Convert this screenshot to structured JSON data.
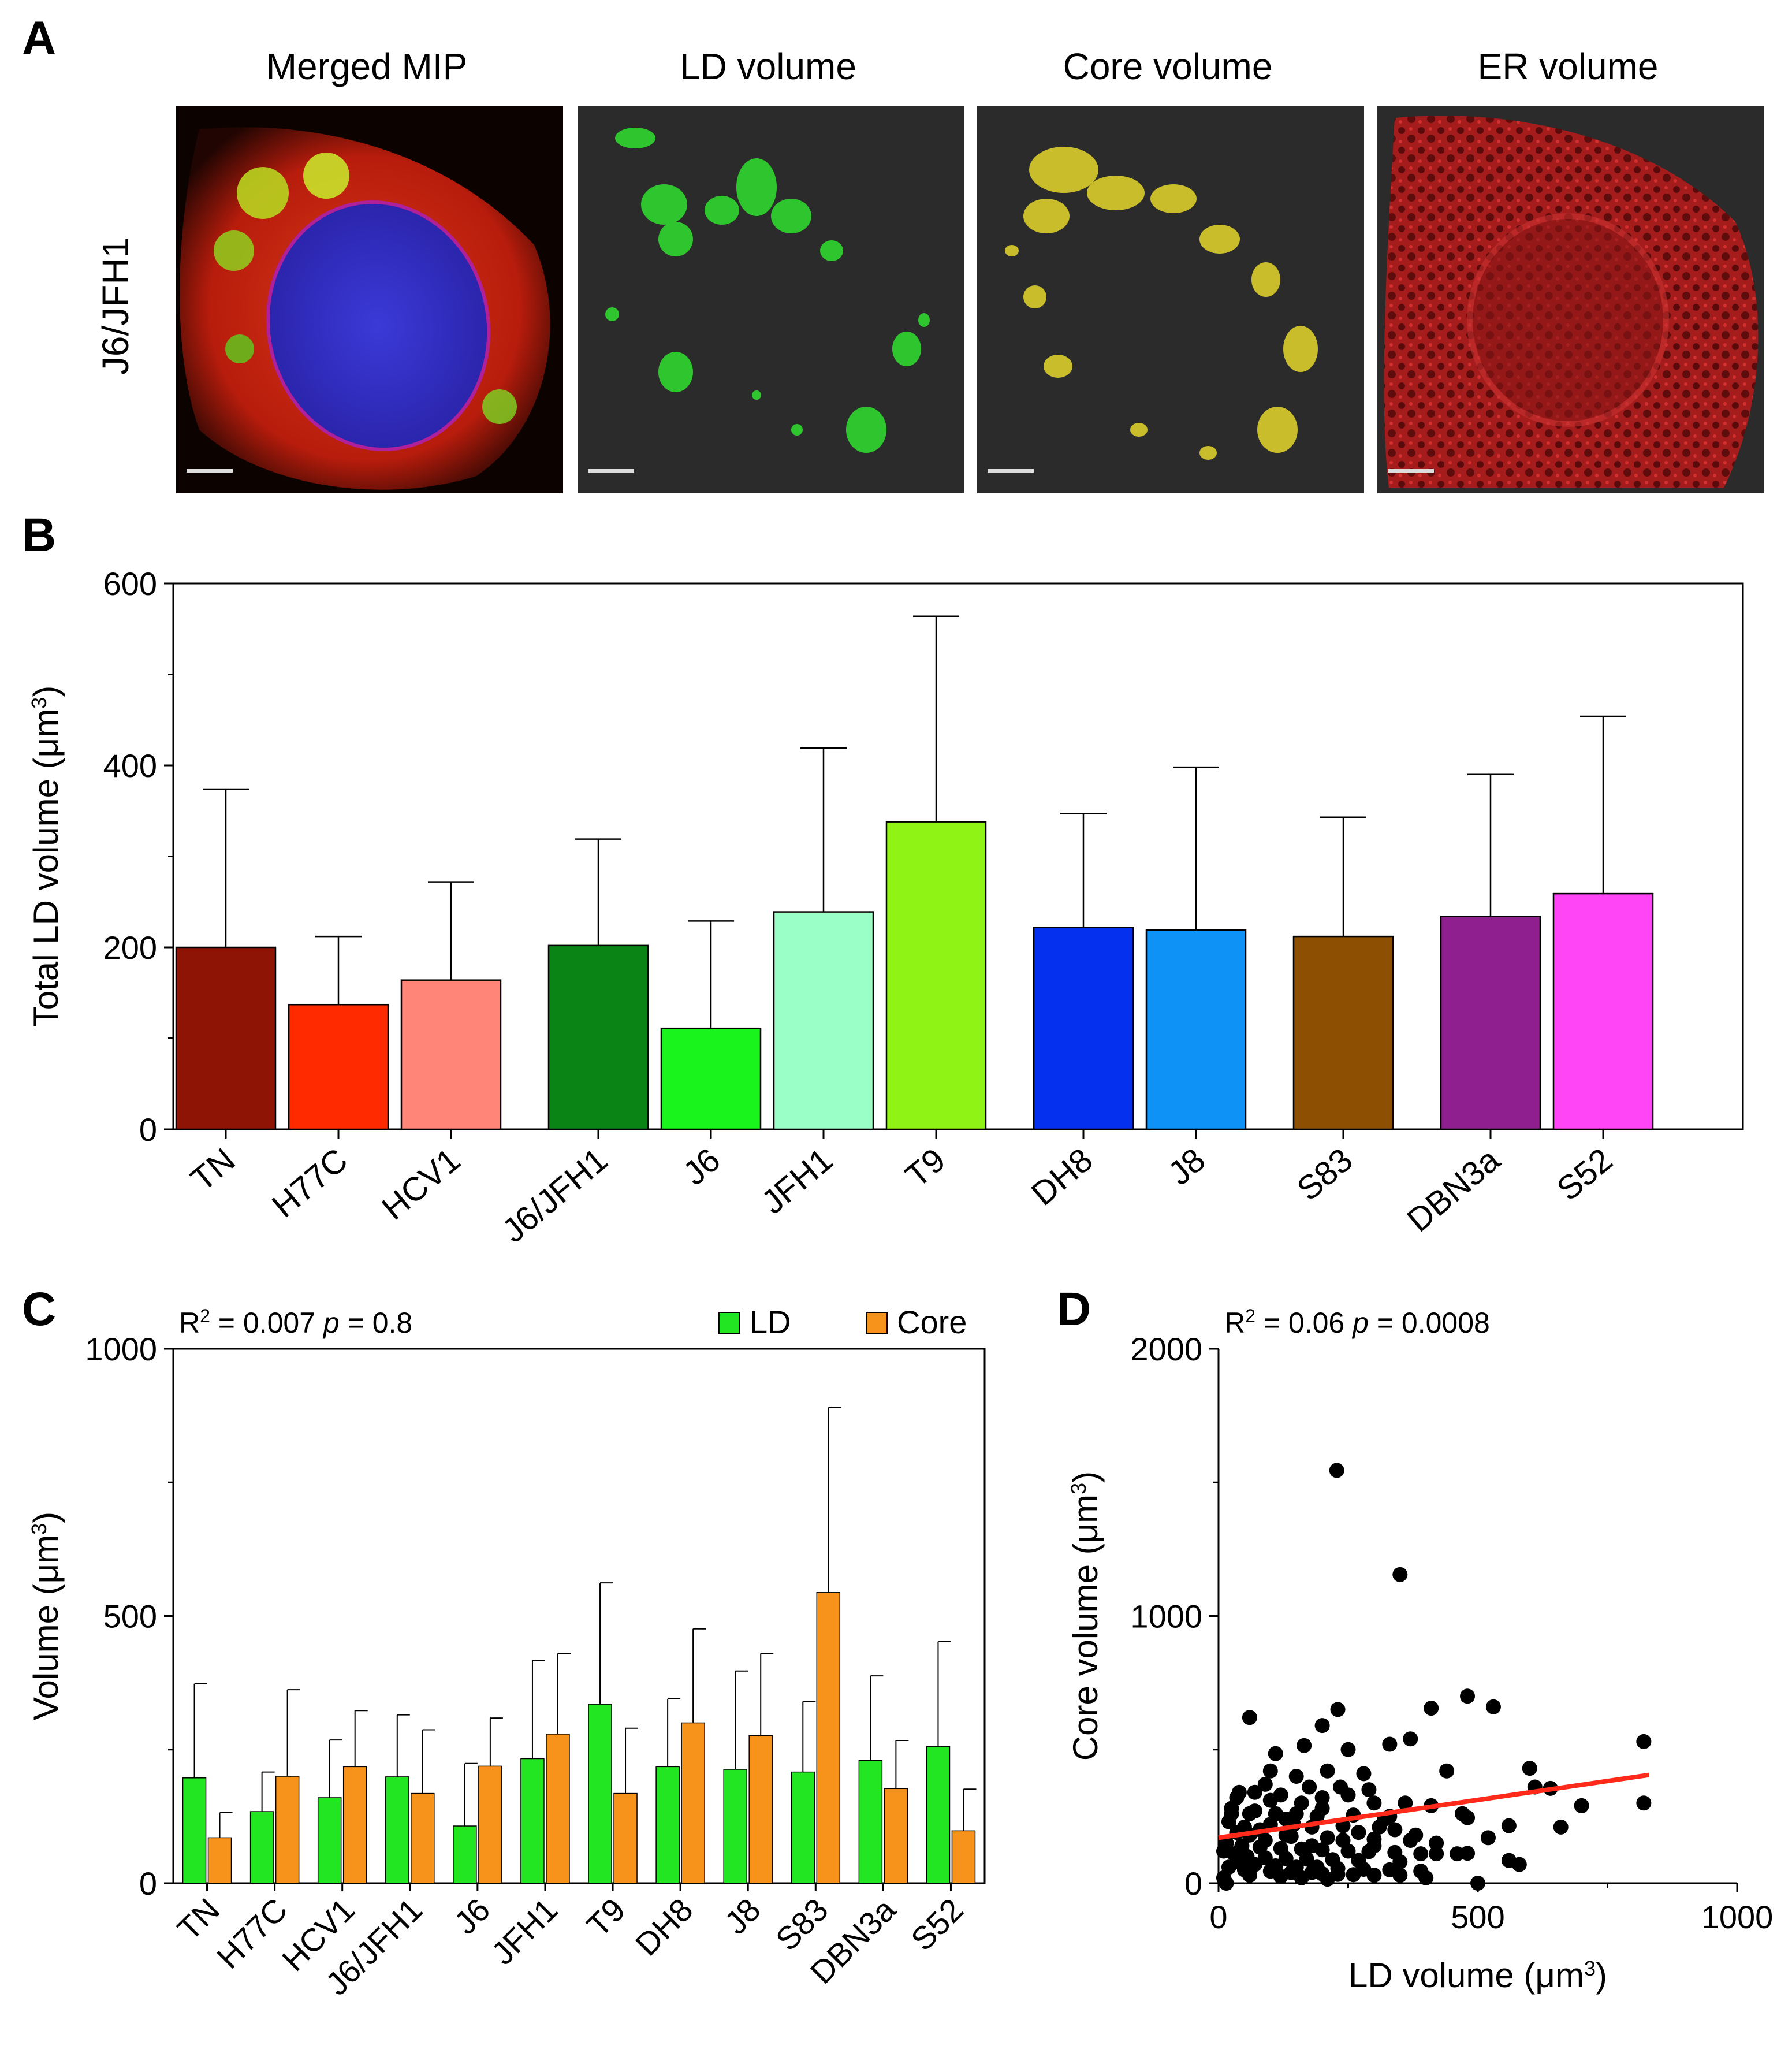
{
  "panel_a": {
    "label": "A",
    "row_label": "J6/JFH1",
    "titles": [
      "Merged MIP",
      "LD volume",
      "Core volume",
      "ER volume"
    ]
  },
  "chart_data": [
    {
      "panel": "B",
      "type": "bar",
      "title": "",
      "xlabel": "",
      "ylabel": "Total LD volume (μm³)",
      "ylim": [
        0,
        600
      ],
      "yticks": [
        0,
        200,
        400,
        600
      ],
      "categories": [
        "TN",
        "H77C",
        "HCV1",
        "J6/JFH1",
        "J6",
        "JFH1",
        "T9",
        "DH8",
        "J8",
        "S83",
        "DBN3a",
        "S52"
      ],
      "values": [
        200,
        137,
        164,
        202,
        111,
        239,
        338,
        222,
        219,
        212,
        234,
        259
      ],
      "error_upper": [
        374,
        212,
        272,
        319,
        229,
        419,
        564,
        347,
        398,
        343,
        390,
        454
      ],
      "colors": [
        "#8e1505",
        "#ff2a00",
        "#ff8579",
        "#0a8414",
        "#19f51c",
        "#99ffc6",
        "#8ff316",
        "#0530ee",
        "#0e92f5",
        "#8d4f02",
        "#8f1e8f",
        "#ff45f5"
      ],
      "groups": [
        [
          0,
          1,
          2
        ],
        [
          3,
          4,
          5,
          6
        ],
        [
          7,
          8
        ],
        [
          9
        ],
        [
          10,
          11
        ]
      ]
    },
    {
      "panel": "C",
      "type": "bar",
      "title": "",
      "xlabel": "",
      "ylabel": "Volume (μm³)",
      "ylim": [
        0,
        1000
      ],
      "yticks": [
        0,
        500,
        1000
      ],
      "annotation": {
        "r2": "R² = 0.007",
        "p_label": "p",
        "p_value": "= 0.8"
      },
      "legend": [
        "LD",
        "Core"
      ],
      "legend_position": "top-right",
      "categories": [
        "TN",
        "H77C",
        "HCV1",
        "J6/JFH1",
        "J6",
        "JFH1",
        "T9",
        "DH8",
        "J8",
        "S83",
        "DBN3a",
        "S52"
      ],
      "series": [
        {
          "name": "LD",
          "color": "#22e622",
          "values": [
            197,
            134,
            160,
            199,
            107,
            233,
            335,
            218,
            213,
            208,
            230,
            256
          ],
          "error_upper": [
            373,
            208,
            268,
            315,
            224,
            417,
            562,
            345,
            397,
            340,
            388,
            452
          ]
        },
        {
          "name": "Core",
          "color": "#f7921b",
          "values": [
            85,
            200,
            218,
            168,
            219,
            279,
            168,
            300,
            276,
            544,
            177,
            98
          ],
          "error_upper": [
            132,
            362,
            323,
            287,
            309,
            430,
            290,
            476,
            430,
            890,
            267,
            176
          ]
        }
      ]
    },
    {
      "panel": "D",
      "type": "scatter",
      "title": "",
      "xlabel": "LD volume (μm³)",
      "ylabel": "Core volume (μm³)",
      "xlim": [
        0,
        1000
      ],
      "ylim": [
        0,
        2000
      ],
      "xticks": [
        0,
        500,
        1000
      ],
      "yticks": [
        0,
        1000,
        2000
      ],
      "annotation": {
        "r2": "R² = 0.06",
        "p_label": "p",
        "p_value": "= 0.0008"
      },
      "points": [
        [
          228,
          1545
        ],
        [
          350,
          1155
        ],
        [
          480,
          700
        ],
        [
          530,
          660
        ],
        [
          410,
          655
        ],
        [
          230,
          650
        ],
        [
          60,
          620
        ],
        [
          200,
          590
        ],
        [
          370,
          540
        ],
        [
          330,
          520
        ],
        [
          165,
          515
        ],
        [
          110,
          485
        ],
        [
          250,
          500
        ],
        [
          820,
          530
        ],
        [
          600,
          430
        ],
        [
          440,
          420
        ],
        [
          280,
          410
        ],
        [
          90,
          370
        ],
        [
          175,
          360
        ],
        [
          235,
          360
        ],
        [
          610,
          360
        ],
        [
          640,
          355
        ],
        [
          40,
          340
        ],
        [
          120,
          330
        ],
        [
          200,
          320
        ],
        [
          300,
          300
        ],
        [
          360,
          300
        ],
        [
          410,
          290
        ],
        [
          820,
          300
        ],
        [
          700,
          290
        ],
        [
          25,
          280
        ],
        [
          70,
          270
        ],
        [
          150,
          260
        ],
        [
          260,
          255
        ],
        [
          330,
          250
        ],
        [
          480,
          245
        ],
        [
          20,
          230
        ],
        [
          100,
          220
        ],
        [
          180,
          210
        ],
        [
          240,
          215
        ],
        [
          310,
          210
        ],
        [
          560,
          215
        ],
        [
          660,
          210
        ],
        [
          35,
          190
        ],
        [
          60,
          180
        ],
        [
          140,
          175
        ],
        [
          210,
          170
        ],
        [
          300,
          165
        ],
        [
          370,
          160
        ],
        [
          420,
          150
        ],
        [
          15,
          150
        ],
        [
          45,
          140
        ],
        [
          80,
          135
        ],
        [
          120,
          130
        ],
        [
          160,
          128
        ],
        [
          200,
          125
        ],
        [
          250,
          120
        ],
        [
          290,
          118
        ],
        [
          340,
          115
        ],
        [
          390,
          110
        ],
        [
          10,
          120
        ],
        [
          30,
          110
        ],
        [
          55,
          100
        ],
        [
          90,
          95
        ],
        [
          130,
          92
        ],
        [
          170,
          90
        ],
        [
          220,
          88
        ],
        [
          270,
          85
        ],
        [
          350,
          80
        ],
        [
          460,
          110
        ],
        [
          480,
          112
        ],
        [
          40,
          80
        ],
        [
          70,
          70
        ],
        [
          110,
          65
        ],
        [
          150,
          60
        ],
        [
          190,
          60
        ],
        [
          230,
          55
        ],
        [
          280,
          52
        ],
        [
          330,
          50
        ],
        [
          390,
          45
        ],
        [
          20,
          60
        ],
        [
          50,
          50
        ],
        [
          100,
          45
        ],
        [
          140,
          40
        ],
        [
          180,
          40
        ],
        [
          200,
          35
        ],
        [
          230,
          33
        ],
        [
          260,
          32
        ],
        [
          300,
          30
        ],
        [
          350,
          30
        ],
        [
          10,
          20
        ],
        [
          60,
          30
        ],
        [
          120,
          25
        ],
        [
          160,
          20
        ],
        [
          210,
          15
        ],
        [
          580,
          70
        ],
        [
          560,
          85
        ],
        [
          500,
          0
        ],
        [
          15,
          0
        ],
        [
          400,
          20
        ],
        [
          80,
          200
        ],
        [
          130,
          240
        ],
        [
          160,
          300
        ],
        [
          100,
          310
        ],
        [
          60,
          260
        ],
        [
          200,
          280
        ],
        [
          340,
          200
        ],
        [
          240,
          160
        ],
        [
          380,
          180
        ],
        [
          420,
          110
        ],
        [
          290,
          350
        ],
        [
          150,
          400
        ],
        [
          100,
          420
        ],
        [
          470,
          260
        ],
        [
          520,
          170
        ],
        [
          300,
          140
        ],
        [
          90,
          160
        ],
        [
          50,
          210
        ],
        [
          130,
          180
        ],
        [
          270,
          190
        ],
        [
          320,
          240
        ],
        [
          180,
          140
        ],
        [
          25,
          260
        ],
        [
          70,
          340
        ],
        [
          210,
          420
        ],
        [
          35,
          320
        ],
        [
          250,
          330
        ],
        [
          145,
          220
        ],
        [
          190,
          250
        ],
        [
          110,
          260
        ]
      ],
      "regression": {
        "color": "#ff2a1a",
        "x": [
          0,
          830
        ],
        "y": [
          170,
          405
        ]
      }
    }
  ]
}
